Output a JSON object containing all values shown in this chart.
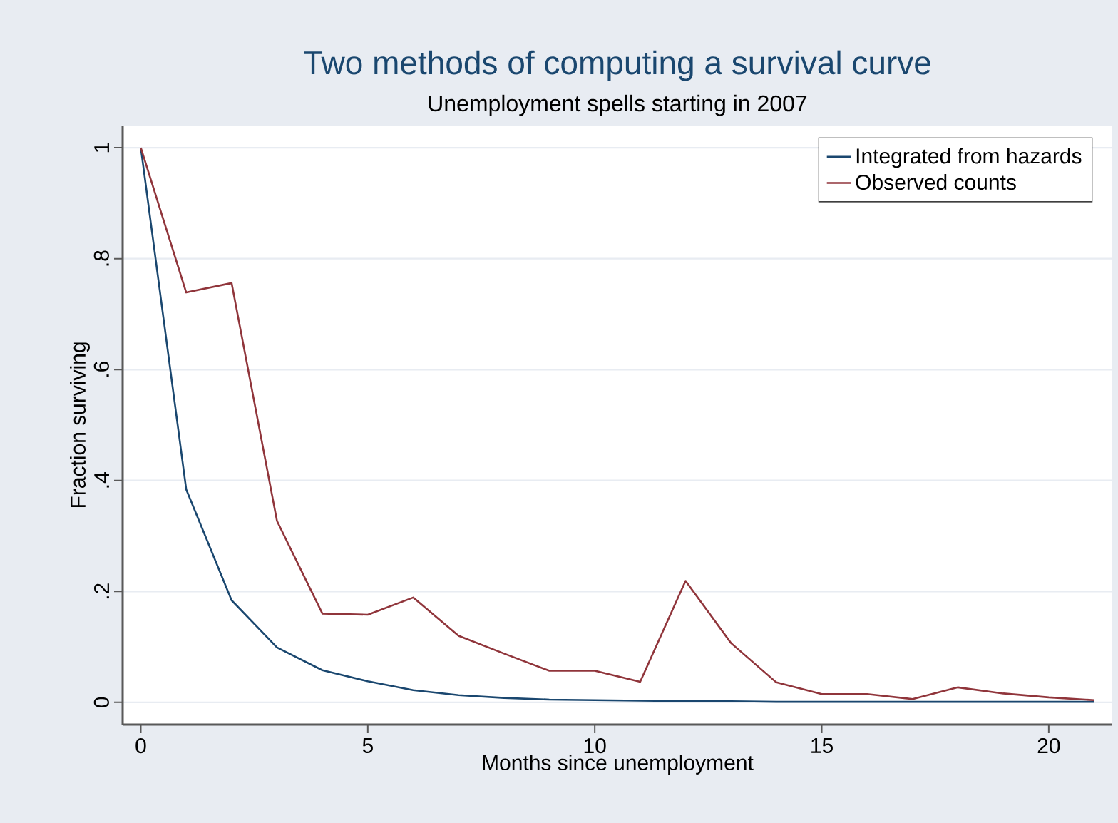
{
  "chart_data": {
    "type": "line",
    "title": "Two methods of computing a survival curve",
    "subtitle": "Unemployment spells starting in 2007",
    "xlabel": "Months since unemployment",
    "ylabel": "Fraction surviving",
    "x": [
      0,
      1,
      2,
      3,
      4,
      5,
      6,
      7,
      8,
      9,
      10,
      11,
      12,
      13,
      14,
      15,
      16,
      17,
      18,
      19,
      20,
      21
    ],
    "series": [
      {
        "name": "Integrated from hazards",
        "color": "#1a476f",
        "values": [
          1,
          0.384,
          0.184,
          0.099,
          0.058,
          0.038,
          0.022,
          0.013,
          0.008,
          0.005,
          0.004,
          0.003,
          0.002,
          0.002,
          0.001,
          0.001,
          0.001,
          0.001,
          0.001,
          0.001,
          0.001,
          0.001
        ]
      },
      {
        "name": "Observed counts",
        "color": "#90353b",
        "values": [
          1,
          0.739,
          0.756,
          0.327,
          0.16,
          0.158,
          0.189,
          0.12,
          0.088,
          0.057,
          0.057,
          0.037,
          0.219,
          0.107,
          0.036,
          0.015,
          0.015,
          0.006,
          0.027,
          0.016,
          0.009,
          0.004
        ]
      }
    ],
    "xlim": [
      -0.4,
      21.4
    ],
    "ylim": [
      -0.04,
      1.04
    ],
    "xticks": [
      0,
      5,
      10,
      15,
      20
    ],
    "yticks": [
      0,
      {
        "value": 0.2,
        "label": ".2"
      },
      {
        "value": 0.4,
        "label": ".4"
      },
      {
        "value": 0.6,
        "label": ".6"
      },
      {
        "value": 0.8,
        "label": ".8"
      },
      1
    ],
    "grid": "y",
    "legend": "top right",
    "marker": "none",
    "line_style": "solid"
  }
}
